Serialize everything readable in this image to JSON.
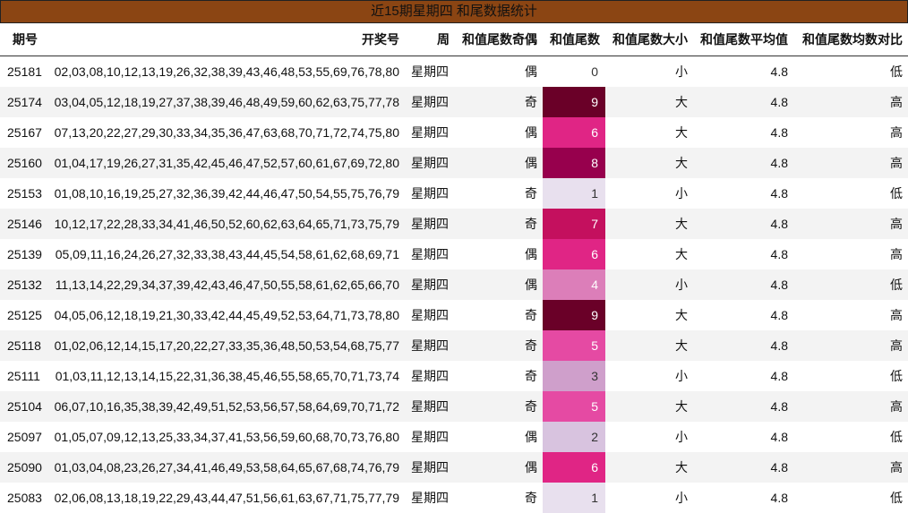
{
  "title": "近15期星期四 和尾数据统计",
  "headers": {
    "id": "期号",
    "numbers": "开奖号",
    "weekday": "周",
    "parity": "和值尾数奇偶",
    "tail": "和值尾数",
    "size": "和值尾数大小",
    "avg": "和值尾数平均值",
    "compare": "和值尾数均数对比"
  },
  "tail_colors": {
    "0": "#ffffff",
    "1": "#e8e0ee",
    "2": "#d8c3df",
    "3": "#cf9fcb",
    "4": "#dc7eb9",
    "5": "#e54aa3",
    "6": "#e02585",
    "7": "#c4105e",
    "8": "#97004d",
    "9": "#6a0028"
  },
  "rows": [
    {
      "id": "25181",
      "numbers": "02,03,08,10,12,13,19,26,32,38,39,43,46,48,53,55,69,76,78,80",
      "weekday": "星期四",
      "parity": "偶",
      "tail": "0",
      "size": "小",
      "avg": "4.8",
      "compare": "低"
    },
    {
      "id": "25174",
      "numbers": "03,04,05,12,18,19,27,37,38,39,46,48,49,59,60,62,63,75,77,78",
      "weekday": "星期四",
      "parity": "奇",
      "tail": "9",
      "size": "大",
      "avg": "4.8",
      "compare": "高"
    },
    {
      "id": "25167",
      "numbers": "07,13,20,22,27,29,30,33,34,35,36,47,63,68,70,71,72,74,75,80",
      "weekday": "星期四",
      "parity": "偶",
      "tail": "6",
      "size": "大",
      "avg": "4.8",
      "compare": "高"
    },
    {
      "id": "25160",
      "numbers": "01,04,17,19,26,27,31,35,42,45,46,47,52,57,60,61,67,69,72,80",
      "weekday": "星期四",
      "parity": "偶",
      "tail": "8",
      "size": "大",
      "avg": "4.8",
      "compare": "高"
    },
    {
      "id": "25153",
      "numbers": "01,08,10,16,19,25,27,32,36,39,42,44,46,47,50,54,55,75,76,79",
      "weekday": "星期四",
      "parity": "奇",
      "tail": "1",
      "size": "小",
      "avg": "4.8",
      "compare": "低"
    },
    {
      "id": "25146",
      "numbers": "10,12,17,22,28,33,34,41,46,50,52,60,62,63,64,65,71,73,75,79",
      "weekday": "星期四",
      "parity": "奇",
      "tail": "7",
      "size": "大",
      "avg": "4.8",
      "compare": "高"
    },
    {
      "id": "25139",
      "numbers": "05,09,11,16,24,26,27,32,33,38,43,44,45,54,58,61,62,68,69,71",
      "weekday": "星期四",
      "parity": "偶",
      "tail": "6",
      "size": "大",
      "avg": "4.8",
      "compare": "高"
    },
    {
      "id": "25132",
      "numbers": "11,13,14,22,29,34,37,39,42,43,46,47,50,55,58,61,62,65,66,70",
      "weekday": "星期四",
      "parity": "偶",
      "tail": "4",
      "size": "小",
      "avg": "4.8",
      "compare": "低"
    },
    {
      "id": "25125",
      "numbers": "04,05,06,12,18,19,21,30,33,42,44,45,49,52,53,64,71,73,78,80",
      "weekday": "星期四",
      "parity": "奇",
      "tail": "9",
      "size": "大",
      "avg": "4.8",
      "compare": "高"
    },
    {
      "id": "25118",
      "numbers": "01,02,06,12,14,15,17,20,22,27,33,35,36,48,50,53,54,68,75,77",
      "weekday": "星期四",
      "parity": "奇",
      "tail": "5",
      "size": "大",
      "avg": "4.8",
      "compare": "高"
    },
    {
      "id": "25111",
      "numbers": "01,03,11,12,13,14,15,22,31,36,38,45,46,55,58,65,70,71,73,74",
      "weekday": "星期四",
      "parity": "奇",
      "tail": "3",
      "size": "小",
      "avg": "4.8",
      "compare": "低"
    },
    {
      "id": "25104",
      "numbers": "06,07,10,16,35,38,39,42,49,51,52,53,56,57,58,64,69,70,71,72",
      "weekday": "星期四",
      "parity": "奇",
      "tail": "5",
      "size": "大",
      "avg": "4.8",
      "compare": "高"
    },
    {
      "id": "25097",
      "numbers": "01,05,07,09,12,13,25,33,34,37,41,53,56,59,60,68,70,73,76,80",
      "weekday": "星期四",
      "parity": "偶",
      "tail": "2",
      "size": "小",
      "avg": "4.8",
      "compare": "低"
    },
    {
      "id": "25090",
      "numbers": "01,03,04,08,23,26,27,34,41,46,49,53,58,64,65,67,68,74,76,79",
      "weekday": "星期四",
      "parity": "偶",
      "tail": "6",
      "size": "大",
      "avg": "4.8",
      "compare": "高"
    },
    {
      "id": "25083",
      "numbers": "02,06,08,13,18,19,22,29,43,44,47,51,56,61,63,67,71,75,77,79",
      "weekday": "星期四",
      "parity": "奇",
      "tail": "1",
      "size": "小",
      "avg": "4.8",
      "compare": "低"
    }
  ]
}
